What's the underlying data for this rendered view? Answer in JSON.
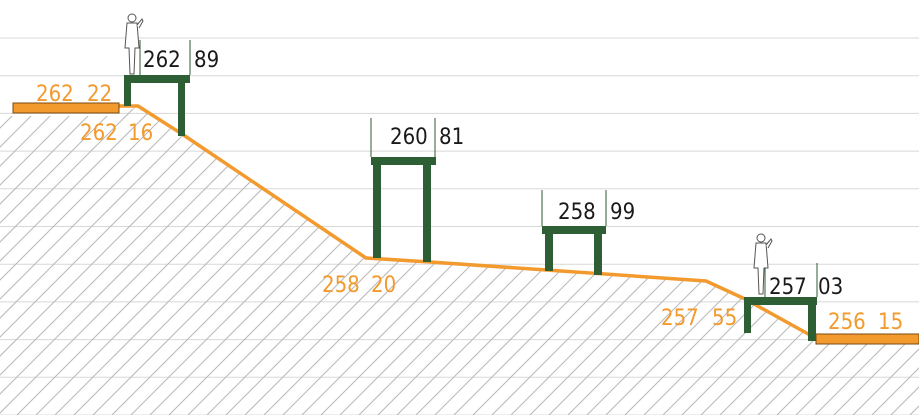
{
  "colors": {
    "terrain_line": "#f39a2e",
    "structure": "#2e5e33",
    "hatch": "#b8b8b8",
    "grid": "#d8d8d8",
    "label_orange": "#f39a2e",
    "label_dark": "#1a1a1a"
  },
  "icons": [
    "person-figure-icon",
    "person-figure-icon"
  ],
  "terrain_labels": [
    {
      "id": "left-platform",
      "a": "262",
      "b": "22"
    },
    {
      "id": "top-left",
      "a": "262",
      "b": "16"
    },
    {
      "id": "valley",
      "a": "258",
      "b": "20"
    },
    {
      "id": "lower-right",
      "a": "257",
      "b": "55"
    },
    {
      "id": "right-platform",
      "a": "256",
      "b": "15"
    }
  ],
  "structure_labels": [
    {
      "id": "deck-1",
      "a": "262",
      "b": "89"
    },
    {
      "id": "deck-2",
      "a": "260",
      "b": "81"
    },
    {
      "id": "deck-3",
      "a": "258",
      "b": "99"
    },
    {
      "id": "deck-4",
      "a": "257",
      "b": "03"
    }
  ]
}
